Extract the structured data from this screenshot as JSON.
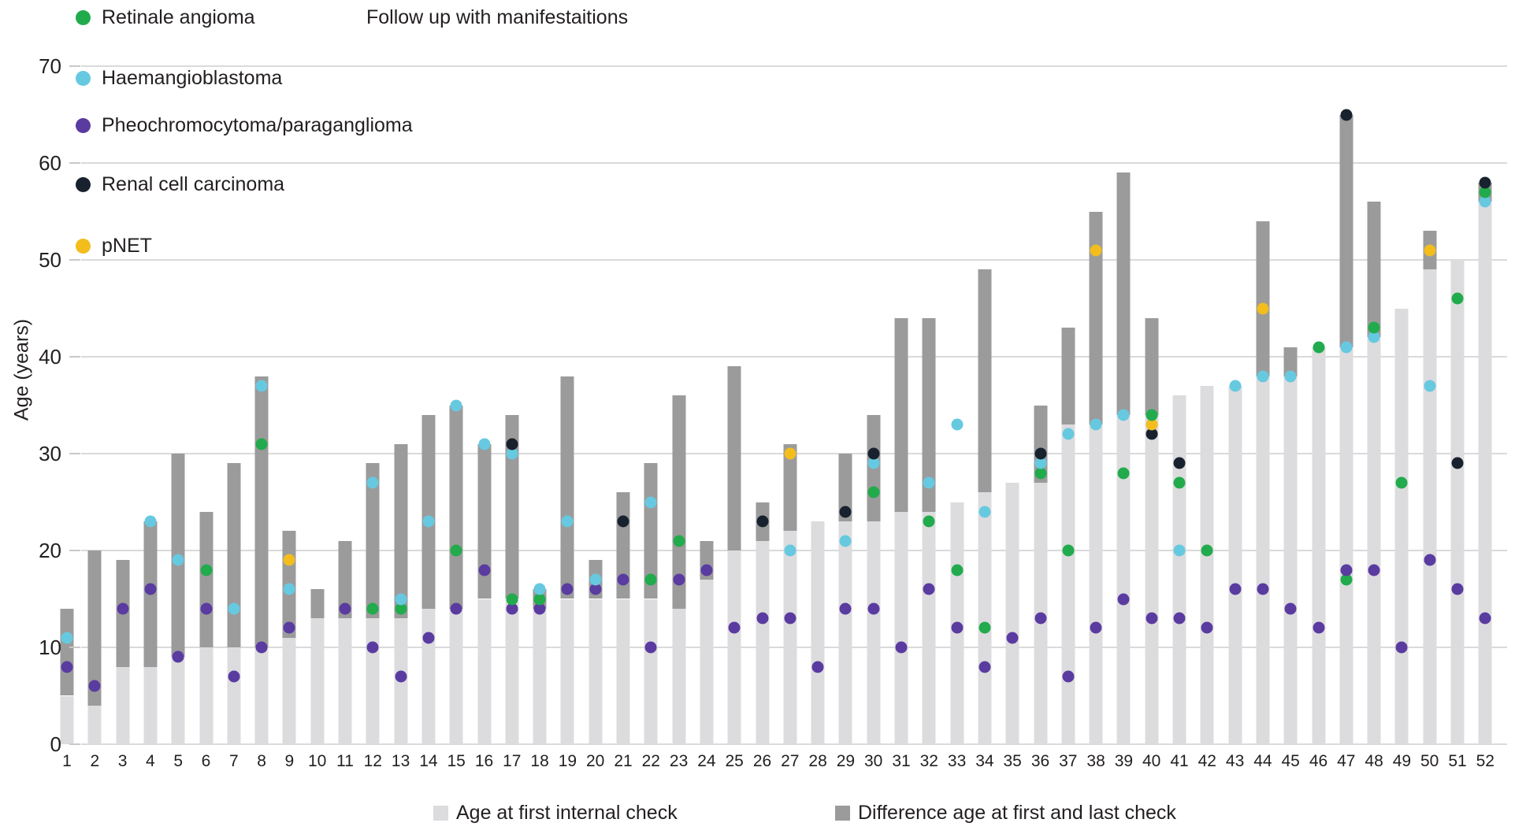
{
  "title": "Follow up with manifestaitions",
  "ylabel": "Age (years)",
  "legend": {
    "items": [
      {
        "key": "ra",
        "label": "Retinale angioma",
        "color": "#22ab4c"
      },
      {
        "key": "hb",
        "label": "Haemangioblastoma",
        "color": "#66c9e0"
      },
      {
        "key": "pheo",
        "label": "Pheochromocytoma/paraganglioma",
        "color": "#5a3ba0"
      },
      {
        "key": "rcc",
        "label": "Renal cell carcinoma",
        "color": "#18222e"
      },
      {
        "key": "pnet",
        "label": "pNET",
        "color": "#f2bd1d"
      }
    ]
  },
  "bottom_legend": [
    {
      "key": "first",
      "label": "Age at first internal check",
      "color": "#dcdcde"
    },
    {
      "key": "diff",
      "label": "Difference age at first and last check",
      "color": "#9b9b9b"
    }
  ],
  "chart_data": {
    "type": "bar",
    "subtype": "stacked-bars-with-scatter",
    "title": "Follow up with manifestaitions",
    "xlabel": "",
    "ylabel": "Age (years)",
    "ylim": [
      0,
      70
    ],
    "yticks": [
      0,
      10,
      20,
      30,
      40,
      50,
      60,
      70
    ],
    "grid": true,
    "legend_position": "top-left and bottom",
    "categories": [
      1,
      2,
      3,
      4,
      5,
      6,
      7,
      8,
      9,
      10,
      11,
      12,
      13,
      14,
      15,
      16,
      17,
      18,
      19,
      20,
      21,
      22,
      23,
      24,
      25,
      26,
      27,
      28,
      29,
      30,
      31,
      32,
      33,
      34,
      35,
      36,
      37,
      38,
      39,
      40,
      41,
      42,
      43,
      44,
      45,
      46,
      47,
      48,
      49,
      50,
      51,
      52
    ],
    "series_legend": {
      "first_check": "Age at first internal check",
      "last_check_top": "Difference age at first and last check (bar drawn from first check age up to last check age)"
    },
    "manifestation_keys": {
      "ra": "Retinale angioma",
      "hb": "Haemangioblastoma",
      "pheo": "Pheochromocytoma/paraganglioma",
      "rcc": "Renal cell carcinoma",
      "pnet": "pNET"
    },
    "patients": [
      {
        "id": 1,
        "first_check": 5,
        "last_check": 14,
        "manifestations": {
          "pheo": 8,
          "hb": 11
        }
      },
      {
        "id": 2,
        "first_check": 4,
        "last_check": 20,
        "manifestations": {
          "pheo": 6
        }
      },
      {
        "id": 3,
        "first_check": 8,
        "last_check": 19,
        "manifestations": {
          "pheo": 14
        }
      },
      {
        "id": 4,
        "first_check": 8,
        "last_check": 23,
        "manifestations": {
          "pheo": 16,
          "hb": 23
        }
      },
      {
        "id": 5,
        "first_check": 9,
        "last_check": 30,
        "manifestations": {
          "pheo": 9,
          "hb": 19
        }
      },
      {
        "id": 6,
        "first_check": 10,
        "last_check": 24,
        "manifestations": {
          "pheo": 14,
          "ra": 18
        }
      },
      {
        "id": 7,
        "first_check": 10,
        "last_check": 29,
        "manifestations": {
          "pheo": 7,
          "hb": 14
        }
      },
      {
        "id": 8,
        "first_check": 10,
        "last_check": 38,
        "manifestations": {
          "pheo": 10,
          "ra": 31,
          "hb": 37
        }
      },
      {
        "id": 9,
        "first_check": 11,
        "last_check": 22,
        "manifestations": {
          "pheo": 12,
          "hb": 16,
          "pnet": 19
        }
      },
      {
        "id": 10,
        "first_check": 13,
        "last_check": 16,
        "manifestations": {}
      },
      {
        "id": 11,
        "first_check": 13,
        "last_check": 21,
        "manifestations": {
          "pheo": 14
        }
      },
      {
        "id": 12,
        "first_check": 13,
        "last_check": 29,
        "manifestations": {
          "pheo": 10,
          "ra": 14,
          "hb": 27
        }
      },
      {
        "id": 13,
        "first_check": 13,
        "last_check": 31,
        "manifestations": {
          "pheo": 7,
          "ra": 14,
          "hb": 15
        }
      },
      {
        "id": 14,
        "first_check": 14,
        "last_check": 34,
        "manifestations": {
          "pheo": 11,
          "hb": 23
        }
      },
      {
        "id": 15,
        "first_check": 14,
        "last_check": 35,
        "manifestations": {
          "pheo": 14,
          "ra": 20,
          "hb": 35
        }
      },
      {
        "id": 16,
        "first_check": 15,
        "last_check": 31,
        "manifestations": {
          "pheo": 18,
          "hb": 31
        }
      },
      {
        "id": 17,
        "first_check": 15,
        "last_check": 34,
        "manifestations": {
          "pheo": 14,
          "ra": 15,
          "hb": 30,
          "rcc": 31
        }
      },
      {
        "id": 18,
        "first_check": 14,
        "last_check": 16,
        "manifestations": {
          "pheo": 14,
          "ra": 15,
          "hb": 16
        }
      },
      {
        "id": 19,
        "first_check": 15,
        "last_check": 38,
        "manifestations": {
          "pheo": 16,
          "hb": 23
        }
      },
      {
        "id": 20,
        "first_check": 15,
        "last_check": 19,
        "manifestations": {
          "pheo": 16,
          "hb": 17
        }
      },
      {
        "id": 21,
        "first_check": 15,
        "last_check": 26,
        "manifestations": {
          "pheo": 17,
          "rcc": 23
        }
      },
      {
        "id": 22,
        "first_check": 15,
        "last_check": 29,
        "manifestations": {
          "pheo": 10,
          "ra": 17,
          "hb": 25
        }
      },
      {
        "id": 23,
        "first_check": 14,
        "last_check": 36,
        "manifestations": {
          "pheo": 17,
          "ra": 21
        }
      },
      {
        "id": 24,
        "first_check": 17,
        "last_check": 21,
        "manifestations": {
          "pheo": 18
        }
      },
      {
        "id": 25,
        "first_check": 20,
        "last_check": 39,
        "manifestations": {
          "pheo": 12
        }
      },
      {
        "id": 26,
        "first_check": 21,
        "last_check": 25,
        "manifestations": {
          "pheo": 13,
          "rcc": 23
        }
      },
      {
        "id": 27,
        "first_check": 22,
        "last_check": 31,
        "manifestations": {
          "pheo": 13,
          "hb": 20,
          "pnet": 30
        }
      },
      {
        "id": 28,
        "first_check": 23,
        "last_check": 23,
        "manifestations": {
          "pheo": 8
        }
      },
      {
        "id": 29,
        "first_check": 23,
        "last_check": 30,
        "manifestations": {
          "pheo": 14,
          "hb": 21,
          "rcc": 24
        }
      },
      {
        "id": 30,
        "first_check": 23,
        "last_check": 34,
        "manifestations": {
          "pheo": 14,
          "ra": 26,
          "hb": 29,
          "rcc": 30
        }
      },
      {
        "id": 31,
        "first_check": 24,
        "last_check": 44,
        "manifestations": {
          "pheo": 10
        }
      },
      {
        "id": 32,
        "first_check": 24,
        "last_check": 44,
        "manifestations": {
          "pheo": 16,
          "ra": 23,
          "hb": 27
        }
      },
      {
        "id": 33,
        "first_check": 25,
        "last_check": 25,
        "manifestations": {
          "pheo": 12,
          "ra": 18,
          "hb": 33
        }
      },
      {
        "id": 34,
        "first_check": 26,
        "last_check": 49,
        "manifestations": {
          "pheo": 8,
          "ra": 12,
          "hb": 24
        }
      },
      {
        "id": 35,
        "first_check": 27,
        "last_check": 27,
        "manifestations": {
          "pheo": 11
        }
      },
      {
        "id": 36,
        "first_check": 27,
        "last_check": 35,
        "manifestations": {
          "pheo": 13,
          "ra": 28,
          "hb": 29,
          "rcc": 30
        }
      },
      {
        "id": 37,
        "first_check": 33,
        "last_check": 43,
        "manifestations": {
          "pheo": 7,
          "ra": 20,
          "hb": 32
        }
      },
      {
        "id": 38,
        "first_check": 33,
        "last_check": 55,
        "manifestations": {
          "pheo": 12,
          "hb": 33,
          "pnet": 51
        }
      },
      {
        "id": 39,
        "first_check": 34,
        "last_check": 59,
        "manifestations": {
          "pheo": 15,
          "ra": 28,
          "hb": 34
        }
      },
      {
        "id": 40,
        "first_check": 34,
        "last_check": 44,
        "manifestations": {
          "pheo": 13,
          "rcc": 32,
          "pnet": 33,
          "ra": 34
        }
      },
      {
        "id": 41,
        "first_check": 36,
        "last_check": 36,
        "manifestations": {
          "pheo": 13,
          "hb": 20,
          "ra": 27,
          "rcc": 29
        }
      },
      {
        "id": 42,
        "first_check": 37,
        "last_check": 37,
        "manifestations": {
          "pheo": 12,
          "ra": 20
        }
      },
      {
        "id": 43,
        "first_check": 37,
        "last_check": 37,
        "manifestations": {
          "pheo": 16,
          "hb": 37
        }
      },
      {
        "id": 44,
        "first_check": 38,
        "last_check": 54,
        "manifestations": {
          "pheo": 16,
          "hb": 38,
          "pnet": 45
        }
      },
      {
        "id": 45,
        "first_check": 38,
        "last_check": 41,
        "manifestations": {
          "pheo": 14,
          "hb": 38
        }
      },
      {
        "id": 46,
        "first_check": 41,
        "last_check": 41,
        "manifestations": {
          "pheo": 12,
          "ra": 41
        }
      },
      {
        "id": 47,
        "first_check": 41,
        "last_check": 65,
        "manifestations": {
          "ra": 17,
          "pheo": 18,
          "hb": 41,
          "rcc": 65
        }
      },
      {
        "id": 48,
        "first_check": 42,
        "last_check": 56,
        "manifestations": {
          "pheo": 18,
          "hb": 42,
          "ra": 43
        }
      },
      {
        "id": 49,
        "first_check": 45,
        "last_check": 45,
        "manifestations": {
          "pheo": 10,
          "ra": 27
        }
      },
      {
        "id": 50,
        "first_check": 49,
        "last_check": 53,
        "manifestations": {
          "pheo": 19,
          "hb": 37,
          "pnet": 51
        }
      },
      {
        "id": 51,
        "first_check": 50,
        "last_check": 50,
        "manifestations": {
          "pheo": 16,
          "rcc": 29,
          "ra": 46
        }
      },
      {
        "id": 52,
        "first_check": 56,
        "last_check": 58,
        "manifestations": {
          "pheo": 13,
          "hb": 56,
          "ra": 57,
          "rcc": 58
        }
      }
    ]
  }
}
